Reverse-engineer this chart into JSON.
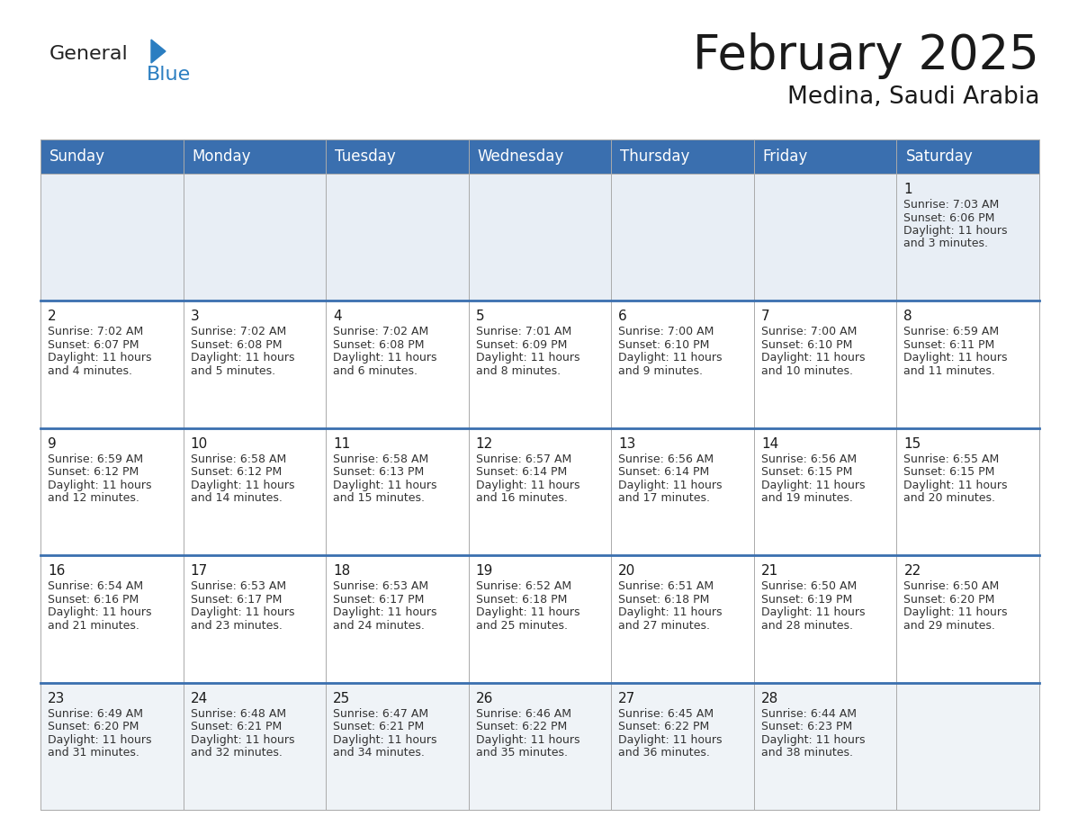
{
  "title": "February 2025",
  "subtitle": "Medina, Saudi Arabia",
  "header_bg": "#3a6faf",
  "header_text_color": "#ffffff",
  "cell_bg_row0": "#e8eef5",
  "cell_bg_normal": "#ffffff",
  "cell_bg_last": "#eff3f7",
  "separator_color": "#3a6faf",
  "grid_color": "#cccccc",
  "day_headers": [
    "Sunday",
    "Monday",
    "Tuesday",
    "Wednesday",
    "Thursday",
    "Friday",
    "Saturday"
  ],
  "title_fontsize": 38,
  "subtitle_fontsize": 19,
  "header_fontsize": 12,
  "day_num_fontsize": 11,
  "cell_fontsize": 9,
  "logo_general_color": "#222222",
  "logo_blue_color": "#2b7ec1",
  "calendar_data": [
    [
      null,
      null,
      null,
      null,
      null,
      null,
      {
        "day": 1,
        "sunrise": "7:03 AM",
        "sunset": "6:06 PM",
        "daylight": "11 hours\nand 3 minutes."
      }
    ],
    [
      {
        "day": 2,
        "sunrise": "7:02 AM",
        "sunset": "6:07 PM",
        "daylight": "11 hours\nand 4 minutes."
      },
      {
        "day": 3,
        "sunrise": "7:02 AM",
        "sunset": "6:08 PM",
        "daylight": "11 hours\nand 5 minutes."
      },
      {
        "day": 4,
        "sunrise": "7:02 AM",
        "sunset": "6:08 PM",
        "daylight": "11 hours\nand 6 minutes."
      },
      {
        "day": 5,
        "sunrise": "7:01 AM",
        "sunset": "6:09 PM",
        "daylight": "11 hours\nand 8 minutes."
      },
      {
        "day": 6,
        "sunrise": "7:00 AM",
        "sunset": "6:10 PM",
        "daylight": "11 hours\nand 9 minutes."
      },
      {
        "day": 7,
        "sunrise": "7:00 AM",
        "sunset": "6:10 PM",
        "daylight": "11 hours\nand 10 minutes."
      },
      {
        "day": 8,
        "sunrise": "6:59 AM",
        "sunset": "6:11 PM",
        "daylight": "11 hours\nand 11 minutes."
      }
    ],
    [
      {
        "day": 9,
        "sunrise": "6:59 AM",
        "sunset": "6:12 PM",
        "daylight": "11 hours\nand 12 minutes."
      },
      {
        "day": 10,
        "sunrise": "6:58 AM",
        "sunset": "6:12 PM",
        "daylight": "11 hours\nand 14 minutes."
      },
      {
        "day": 11,
        "sunrise": "6:58 AM",
        "sunset": "6:13 PM",
        "daylight": "11 hours\nand 15 minutes."
      },
      {
        "day": 12,
        "sunrise": "6:57 AM",
        "sunset": "6:14 PM",
        "daylight": "11 hours\nand 16 minutes."
      },
      {
        "day": 13,
        "sunrise": "6:56 AM",
        "sunset": "6:14 PM",
        "daylight": "11 hours\nand 17 minutes."
      },
      {
        "day": 14,
        "sunrise": "6:56 AM",
        "sunset": "6:15 PM",
        "daylight": "11 hours\nand 19 minutes."
      },
      {
        "day": 15,
        "sunrise": "6:55 AM",
        "sunset": "6:15 PM",
        "daylight": "11 hours\nand 20 minutes."
      }
    ],
    [
      {
        "day": 16,
        "sunrise": "6:54 AM",
        "sunset": "6:16 PM",
        "daylight": "11 hours\nand 21 minutes."
      },
      {
        "day": 17,
        "sunrise": "6:53 AM",
        "sunset": "6:17 PM",
        "daylight": "11 hours\nand 23 minutes."
      },
      {
        "day": 18,
        "sunrise": "6:53 AM",
        "sunset": "6:17 PM",
        "daylight": "11 hours\nand 24 minutes."
      },
      {
        "day": 19,
        "sunrise": "6:52 AM",
        "sunset": "6:18 PM",
        "daylight": "11 hours\nand 25 minutes."
      },
      {
        "day": 20,
        "sunrise": "6:51 AM",
        "sunset": "6:18 PM",
        "daylight": "11 hours\nand 27 minutes."
      },
      {
        "day": 21,
        "sunrise": "6:50 AM",
        "sunset": "6:19 PM",
        "daylight": "11 hours\nand 28 minutes."
      },
      {
        "day": 22,
        "sunrise": "6:50 AM",
        "sunset": "6:20 PM",
        "daylight": "11 hours\nand 29 minutes."
      }
    ],
    [
      {
        "day": 23,
        "sunrise": "6:49 AM",
        "sunset": "6:20 PM",
        "daylight": "11 hours\nand 31 minutes."
      },
      {
        "day": 24,
        "sunrise": "6:48 AM",
        "sunset": "6:21 PM",
        "daylight": "11 hours\nand 32 minutes."
      },
      {
        "day": 25,
        "sunrise": "6:47 AM",
        "sunset": "6:21 PM",
        "daylight": "11 hours\nand 34 minutes."
      },
      {
        "day": 26,
        "sunrise": "6:46 AM",
        "sunset": "6:22 PM",
        "daylight": "11 hours\nand 35 minutes."
      },
      {
        "day": 27,
        "sunrise": "6:45 AM",
        "sunset": "6:22 PM",
        "daylight": "11 hours\nand 36 minutes."
      },
      {
        "day": 28,
        "sunrise": "6:44 AM",
        "sunset": "6:23 PM",
        "daylight": "11 hours\nand 38 minutes."
      },
      null
    ]
  ]
}
